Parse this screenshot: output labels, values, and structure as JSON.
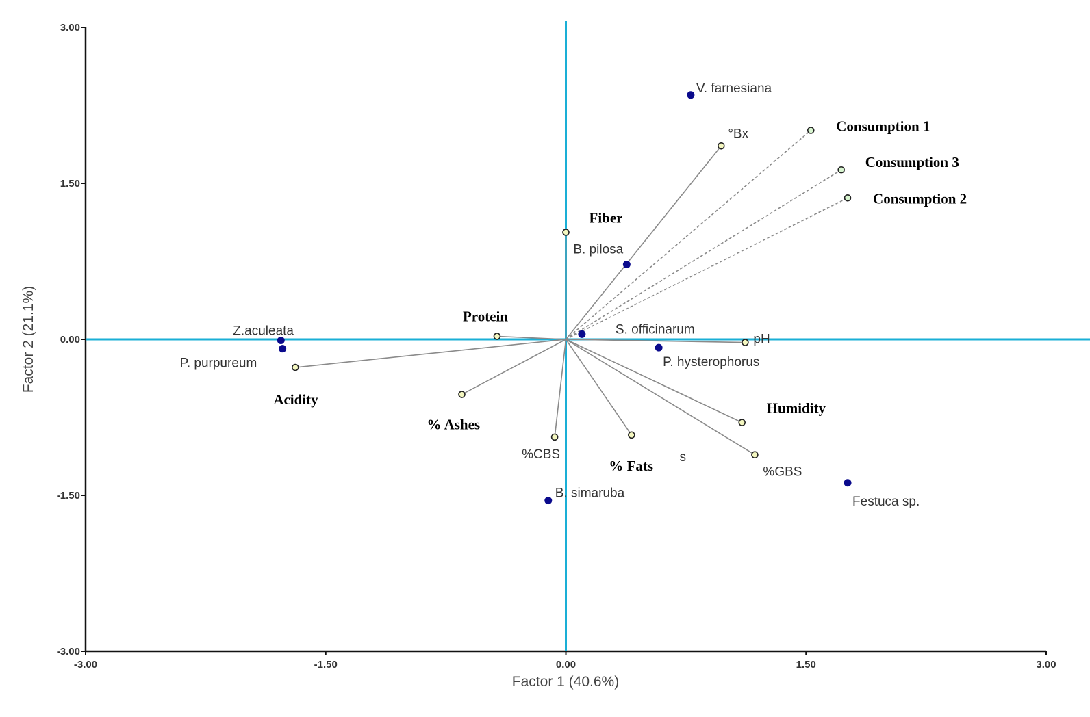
{
  "chart_data": {
    "type": "scatter",
    "subtype": "biplot",
    "title": "",
    "xlabel": "Factor 1 (40.6%)",
    "ylabel": "Factor 2 (21.1%)",
    "xlim": [
      -3.0,
      3.0
    ],
    "ylim": [
      -3.0,
      3.0
    ],
    "xticks": [
      "-3.00",
      "-1.50",
      "0.00",
      "1.50",
      "3.00"
    ],
    "yticks": [
      "-3.00",
      "-1.50",
      "0.00",
      "1.50",
      "3.00"
    ],
    "grid": false,
    "colors": {
      "zero_lines": "#1aafd6",
      "species": "#0a0a8c",
      "vector": "#8a8a8a",
      "variable_fill": "#f4f7c0",
      "consumption_fill": "#d8f5d0"
    },
    "species": [
      {
        "name": "V. farnesiana",
        "x": 0.78,
        "y": 2.35
      },
      {
        "name": "B. pilosa",
        "x": 0.38,
        "y": 0.72
      },
      {
        "name": "S. officinarum",
        "x": 0.1,
        "y": 0.05
      },
      {
        "name": "P. hysterophorus",
        "x": 0.58,
        "y": -0.08
      },
      {
        "name": "Z.aculeata",
        "x": -1.78,
        "y": -0.01
      },
      {
        "name": "P. purpureum",
        "x": -1.77,
        "y": -0.09
      },
      {
        "name": "B. simaruba",
        "x": -0.11,
        "y": -1.55
      },
      {
        "name": "Festuca sp.",
        "x": 1.76,
        "y": -1.38
      }
    ],
    "variables": [
      {
        "name": "°Bx",
        "x": 0.97,
        "y": 1.86,
        "style": "sans",
        "dashed": false
      },
      {
        "name": "Consumption 1",
        "x": 1.53,
        "y": 2.01,
        "style": "serif",
        "dashed": true
      },
      {
        "name": "Consumption 3",
        "x": 1.72,
        "y": 1.63,
        "style": "serif",
        "dashed": true
      },
      {
        "name": "Consumption 2",
        "x": 1.76,
        "y": 1.36,
        "style": "serif",
        "dashed": true
      },
      {
        "name": "Fiber",
        "x": 0.0,
        "y": 1.03,
        "style": "serif",
        "dashed": false
      },
      {
        "name": "Protein",
        "x": -0.43,
        "y": 0.03,
        "style": "serif",
        "dashed": false
      },
      {
        "name": "pH",
        "x": 1.12,
        "y": -0.03,
        "style": "sans",
        "dashed": false
      },
      {
        "name": "Acidity",
        "x": -1.69,
        "y": -0.27,
        "style": "serif",
        "dashed": false
      },
      {
        "name": "% Ashes",
        "x": -0.65,
        "y": -0.53,
        "style": "serif",
        "dashed": false
      },
      {
        "name": "%CBS",
        "x": -0.07,
        "y": -0.94,
        "style": "sans",
        "dashed": false
      },
      {
        "name": "% Fats",
        "x": 0.41,
        "y": -0.92,
        "style": "serif",
        "dashed": false
      },
      {
        "name": "Humidity",
        "x": 1.1,
        "y": -0.8,
        "style": "serif",
        "dashed": false
      },
      {
        "name": "%GBS",
        "x": 1.18,
        "y": -1.11,
        "style": "sans",
        "dashed": false
      }
    ],
    "annotations": [
      {
        "text": "s",
        "x": 0.73,
        "y": -1.13
      }
    ]
  }
}
